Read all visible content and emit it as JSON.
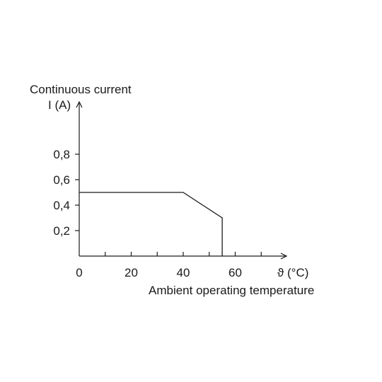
{
  "chart_data": {
    "type": "line",
    "ylabel_line1": "Continuous current",
    "ylabel_line2": "I (A)",
    "xunit": "ϑ (°C)",
    "xlabel": "Ambient operating temperature",
    "x_ticks": [
      0,
      10,
      20,
      30,
      40,
      50,
      60,
      70
    ],
    "x_tick_labels": [
      {
        "value": 0,
        "label": "0"
      },
      {
        "value": 20,
        "label": "20"
      },
      {
        "value": 40,
        "label": "40"
      },
      {
        "value": 60,
        "label": "60"
      }
    ],
    "y_ticks": [
      {
        "value": 0.2,
        "label": "0,2"
      },
      {
        "value": 0.4,
        "label": "0,4"
      },
      {
        "value": 0.6,
        "label": "0,6"
      },
      {
        "value": 0.8,
        "label": "0,8"
      }
    ],
    "xlim": [
      0,
      80
    ],
    "ylim": [
      0,
      1.2
    ],
    "grid": false,
    "series": [
      {
        "x": [
          0,
          40,
          55,
          55
        ],
        "y": [
          0.5,
          0.5,
          0.3,
          0
        ]
      }
    ]
  }
}
